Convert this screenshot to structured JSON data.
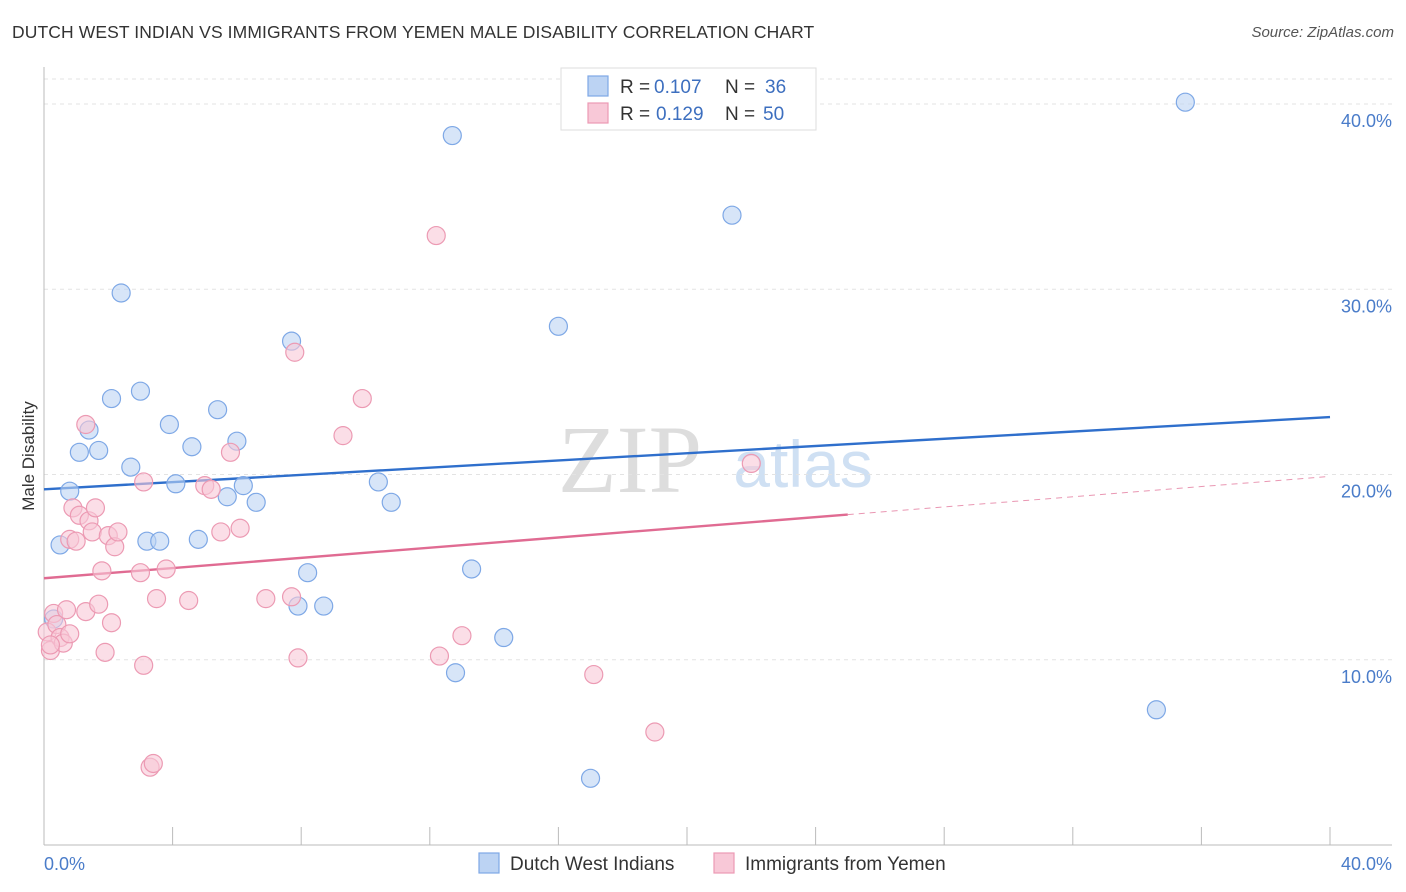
{
  "header": {
    "title": "DUTCH WEST INDIAN VS IMMIGRANTS FROM YEMEN MALE DISABILITY CORRELATION CHART",
    "source": "Source: ZipAtlas.com"
  },
  "watermark": {
    "zip": "ZIP",
    "atlas": "atlas"
  },
  "legend": {
    "rows": [
      {
        "r_label": "R = ",
        "r_value": "0.107",
        "n_label": "N = ",
        "n_value": "36"
      },
      {
        "r_label": "R = ",
        "r_value": "0.129",
        "n_label": "N = ",
        "n_value": "50"
      }
    ]
  },
  "chart_data": {
    "type": "scatter",
    "title": "DUTCH WEST INDIAN VS IMMIGRANTS FROM YEMEN MALE DISABILITY CORRELATION CHART",
    "xlabel": "",
    "ylabel": "Male Disability",
    "xlim": [
      0,
      40
    ],
    "ylim": [
      0,
      42
    ],
    "x_tick_labels": {
      "left": "0.0%",
      "right": "40.0%"
    },
    "y_ticks": [
      {
        "value": 10,
        "label": "10.0%"
      },
      {
        "value": 20,
        "label": "20.0%"
      },
      {
        "value": 30,
        "label": "30.0%"
      },
      {
        "value": 40,
        "label": "40.0%"
      }
    ],
    "grid": true,
    "legend_position": "top-center",
    "series": [
      {
        "name": "Dutch West Indians",
        "color": "#7ea8e6",
        "fill": "#bcd3f3",
        "line_color": "#2f6fcc",
        "trend": {
          "x0": 0,
          "y0": 19.2,
          "x1": 40,
          "y1": 23.1,
          "dashed_from": null
        },
        "points": [
          [
            0.3,
            12.2
          ],
          [
            0.5,
            16.2
          ],
          [
            0.8,
            19.1
          ],
          [
            1.1,
            21.2
          ],
          [
            1.4,
            22.4
          ],
          [
            1.7,
            21.3
          ],
          [
            2.1,
            24.1
          ],
          [
            2.4,
            29.8
          ],
          [
            2.7,
            20.4
          ],
          [
            3.0,
            24.5
          ],
          [
            3.2,
            16.4
          ],
          [
            3.6,
            16.4
          ],
          [
            3.9,
            22.7
          ],
          [
            4.1,
            19.5
          ],
          [
            4.6,
            21.5
          ],
          [
            4.8,
            16.5
          ],
          [
            5.4,
            23.5
          ],
          [
            5.7,
            18.8
          ],
          [
            6.0,
            21.8
          ],
          [
            6.2,
            19.4
          ],
          [
            6.6,
            18.5
          ],
          [
            7.7,
            27.2
          ],
          [
            7.9,
            12.9
          ],
          [
            8.2,
            14.7
          ],
          [
            8.7,
            12.9
          ],
          [
            10.4,
            19.6
          ],
          [
            10.8,
            18.5
          ],
          [
            12.8,
            9.3
          ],
          [
            12.7,
            38.3
          ],
          [
            13.3,
            14.9
          ],
          [
            14.3,
            11.2
          ],
          [
            16.0,
            28.0
          ],
          [
            17.0,
            3.6
          ],
          [
            21.4,
            34.0
          ],
          [
            34.6,
            7.3
          ],
          [
            35.5,
            40.1
          ]
        ]
      },
      {
        "name": "Immigrants from Yemen",
        "color": "#ec9ab3",
        "fill": "#f8c8d7",
        "line_color": "#e06b92",
        "trend": {
          "x0": 0,
          "y0": 14.4,
          "x1": 40,
          "y1": 19.9,
          "dashed_from": 25.0
        },
        "points": [
          [
            0.1,
            11.5
          ],
          [
            0.2,
            10.5
          ],
          [
            0.3,
            12.5
          ],
          [
            0.4,
            11.9
          ],
          [
            0.5,
            11.2
          ],
          [
            0.6,
            10.9
          ],
          [
            0.7,
            12.7
          ],
          [
            0.8,
            11.4
          ],
          [
            0.8,
            16.5
          ],
          [
            0.9,
            18.2
          ],
          [
            1.0,
            16.4
          ],
          [
            1.1,
            17.8
          ],
          [
            1.3,
            12.6
          ],
          [
            1.3,
            22.7
          ],
          [
            1.4,
            17.5
          ],
          [
            1.5,
            16.9
          ],
          [
            1.6,
            18.2
          ],
          [
            1.7,
            13.0
          ],
          [
            1.8,
            14.8
          ],
          [
            1.9,
            10.4
          ],
          [
            2.0,
            16.7
          ],
          [
            2.1,
            12.0
          ],
          [
            2.2,
            16.1
          ],
          [
            2.3,
            16.9
          ],
          [
            3.0,
            14.7
          ],
          [
            3.1,
            19.6
          ],
          [
            3.1,
            9.7
          ],
          [
            3.3,
            4.2
          ],
          [
            3.4,
            4.4
          ],
          [
            3.5,
            13.3
          ],
          [
            3.8,
            14.9
          ],
          [
            4.5,
            13.2
          ],
          [
            5.0,
            19.4
          ],
          [
            5.2,
            19.2
          ],
          [
            5.5,
            16.9
          ],
          [
            5.8,
            21.2
          ],
          [
            6.1,
            17.1
          ],
          [
            6.9,
            13.3
          ],
          [
            7.7,
            13.4
          ],
          [
            7.8,
            26.6
          ],
          [
            7.9,
            10.1
          ],
          [
            9.3,
            22.1
          ],
          [
            9.9,
            24.1
          ],
          [
            12.2,
            32.9
          ],
          [
            12.3,
            10.2
          ],
          [
            13.0,
            11.3
          ],
          [
            17.1,
            9.2
          ],
          [
            19.0,
            6.1
          ],
          [
            22.0,
            20.6
          ],
          [
            0.2,
            10.8
          ]
        ]
      }
    ]
  },
  "bottom_legend": [
    {
      "label": "Dutch West Indians"
    },
    {
      "label": "Immigrants from Yemen"
    }
  ]
}
